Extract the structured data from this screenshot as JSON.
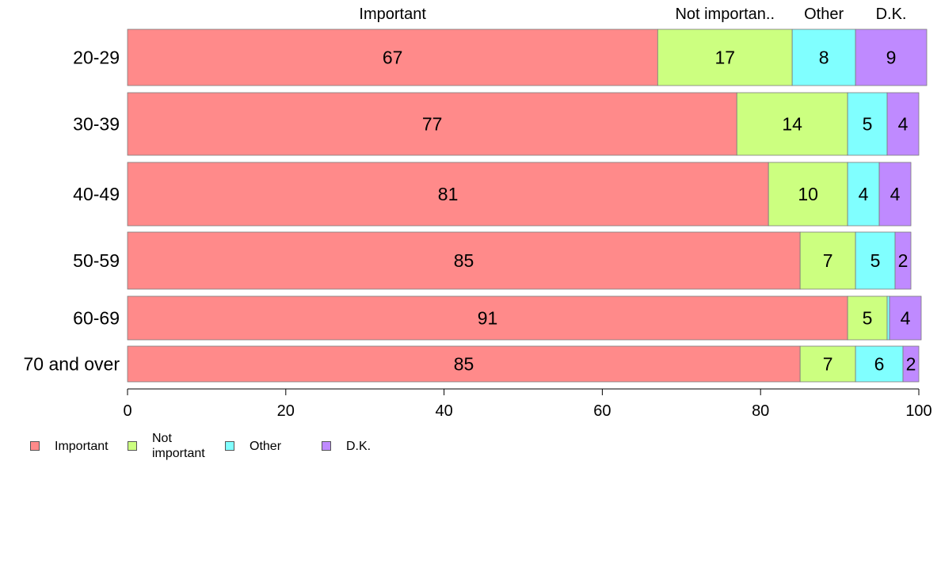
{
  "chart_data": {
    "type": "bar",
    "orientation": "horizontal",
    "stacked": true,
    "categories": [
      "20-29",
      "30-39",
      "40-49",
      "50-59",
      "60-69",
      "70 and over"
    ],
    "series": [
      {
        "name": "Important",
        "values": [
          67,
          77,
          81,
          85,
          91,
          85
        ],
        "color": "#ff8a8a"
      },
      {
        "name": "Not important",
        "values": [
          17,
          14,
          10,
          7,
          5,
          7
        ],
        "color": "#ccff80"
      },
      {
        "name": "Other",
        "values": [
          8,
          5,
          4,
          5,
          0.3,
          6
        ],
        "color": "#80ffff"
      },
      {
        "name": "D.K.",
        "values": [
          9,
          4,
          4,
          2,
          4,
          2
        ],
        "color": "#bf8aff"
      }
    ],
    "data_labels": [
      [
        "67",
        "17",
        "8",
        "9"
      ],
      [
        "77",
        "14",
        "5",
        "4"
      ],
      [
        "81",
        "10",
        "4",
        "4"
      ],
      [
        "85",
        "7",
        "5",
        "2"
      ],
      [
        "91",
        "5",
        "",
        "4"
      ],
      [
        "85",
        "7",
        "6",
        "2"
      ]
    ],
    "top_labels": [
      "Important",
      "Not importan..",
      "Other",
      "D.K."
    ],
    "xlim": [
      0,
      100
    ],
    "xticks": [
      "0",
      "20",
      "40",
      "60",
      "80",
      "100"
    ],
    "grid": false,
    "legend_position": "bottom-left",
    "legend": [
      {
        "label": "Important",
        "color": "#ff8a8a"
      },
      {
        "label": "Not\nimportant",
        "color": "#ccff80"
      },
      {
        "label": "Other",
        "color": "#80ffff"
      },
      {
        "label": "D.K.",
        "color": "#bf8aff"
      }
    ]
  }
}
